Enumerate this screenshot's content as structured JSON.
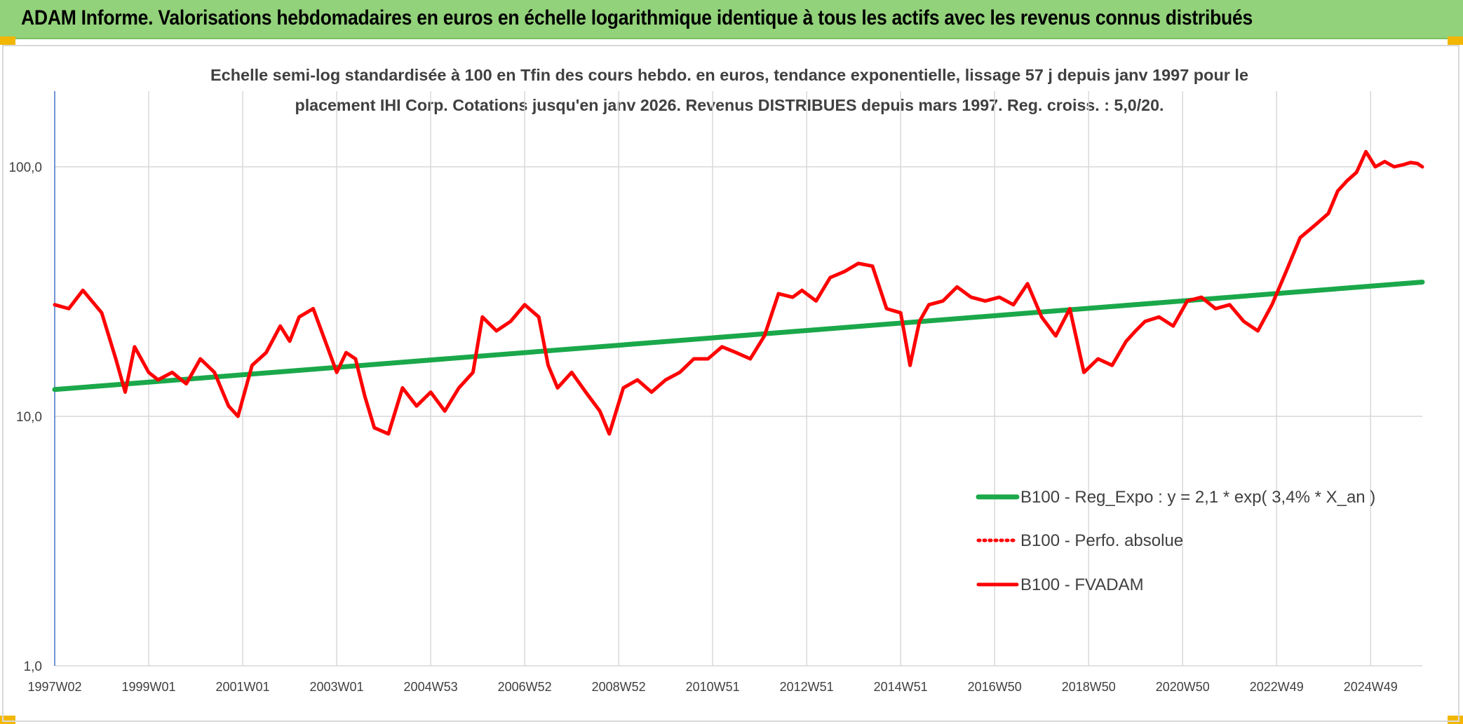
{
  "banner": {
    "title": "ADAM Informe. Valorisations hebdomadaires en euros en échelle logarithmique identique à tous les actifs avec les revenus connus distribués"
  },
  "colors": {
    "banner_bg": "#92d27a",
    "trend": "#1aa84a",
    "price": "#ff0000",
    "grid": "#d9d9d9",
    "axis": "#4472c4",
    "corner": "#f2b705"
  },
  "chart_data": {
    "type": "line",
    "title_lines": [
      "Echelle semi-log standardisée à 100 en Tfin des cours hebdo. en euros, tendance exponentielle, lissage 57 j depuis janv 1997 pour le",
      "placement IHI Corp. Cotations jusqu'en janv 2026. Revenus DISTRIBUES depuis mars 1997. Reg. croiss. : 5,0/20."
    ],
    "y_scale": "log",
    "ylim": [
      1,
      200
    ],
    "y_ticks": [
      1,
      10,
      100
    ],
    "y_tick_labels": [
      "1,0",
      "10,0",
      "100,0"
    ],
    "xlim": [
      1997.0,
      2026.1
    ],
    "x_tick_labels": [
      "1997W02",
      "1999W01",
      "2001W01",
      "2003W01",
      "2004W53",
      "2006W52",
      "2008W52",
      "2010W51",
      "2012W51",
      "2014W51",
      "2016W50",
      "2018W50",
      "2020W50",
      "2022W49",
      "2024W49"
    ],
    "x_tick_years": [
      1997.0,
      1999.0,
      2001.0,
      2003.0,
      2005.0,
      2007.0,
      2009.0,
      2011.0,
      2013.0,
      2015.0,
      2017.0,
      2019.0,
      2021.0,
      2023.0,
      2025.0
    ],
    "grid": true,
    "legend_position": "lower-right",
    "series": [
      {
        "name": "B100 - Reg_Expo : y = 2,1 * exp( 3,4% *  X_an )",
        "style": "solid",
        "color": "#1aa84a",
        "x": [
          1997.0,
          2026.1
        ],
        "y": [
          12.8,
          34.5
        ]
      },
      {
        "name": "B100 - Perfo. absolue",
        "style": "dotted",
        "color": "#ff0000",
        "x": [],
        "y": []
      },
      {
        "name": "B100 - FVADAM",
        "style": "solid",
        "color": "#ff0000",
        "x": [
          1997.0,
          1997.3,
          1997.6,
          1998.0,
          1998.3,
          1998.5,
          1998.7,
          1999.0,
          1999.2,
          1999.5,
          1999.8,
          2000.1,
          2000.4,
          2000.7,
          2000.9,
          2001.2,
          2001.5,
          2001.8,
          2002.0,
          2002.2,
          2002.5,
          2002.8,
          2003.0,
          2003.2,
          2003.4,
          2003.6,
          2003.8,
          2004.1,
          2004.4,
          2004.7,
          2005.0,
          2005.3,
          2005.6,
          2005.9,
          2006.1,
          2006.4,
          2006.7,
          2007.0,
          2007.3,
          2007.5,
          2007.7,
          2008.0,
          2008.3,
          2008.6,
          2008.8,
          2009.1,
          2009.4,
          2009.7,
          2010.0,
          2010.3,
          2010.6,
          2010.9,
          2011.2,
          2011.5,
          2011.8,
          2012.1,
          2012.4,
          2012.7,
          2012.9,
          2013.2,
          2013.5,
          2013.8,
          2014.1,
          2014.4,
          2014.7,
          2015.0,
          2015.2,
          2015.4,
          2015.6,
          2015.9,
          2016.2,
          2016.5,
          2016.8,
          2017.1,
          2017.4,
          2017.7,
          2018.0,
          2018.3,
          2018.6,
          2018.9,
          2019.2,
          2019.5,
          2019.8,
          2020.0,
          2020.2,
          2020.5,
          2020.8,
          2021.1,
          2021.4,
          2021.7,
          2022.0,
          2022.3,
          2022.6,
          2022.9,
          2023.2,
          2023.5,
          2023.8,
          2024.1,
          2024.3,
          2024.5,
          2024.7,
          2024.9,
          2025.1,
          2025.3,
          2025.5,
          2025.7,
          2025.85,
          2026.0,
          2026.1
        ],
        "y": [
          28,
          27,
          32,
          26,
          17,
          12.5,
          19,
          15,
          14,
          15,
          13.5,
          17,
          15,
          11,
          10,
          16,
          18,
          23,
          20,
          25,
          27,
          19,
          15,
          18,
          17,
          12,
          9,
          8.5,
          13,
          11,
          12.5,
          10.5,
          13,
          15,
          25,
          22,
          24,
          28,
          25,
          16,
          13,
          15,
          12.5,
          10.5,
          8.5,
          13,
          14,
          12.5,
          14,
          15,
          17,
          17,
          19,
          18,
          17,
          21,
          31,
          30,
          32,
          29,
          36,
          38,
          41,
          40,
          27,
          26,
          16,
          24,
          28,
          29,
          33,
          30,
          29,
          30,
          28,
          34,
          25,
          21,
          27,
          15,
          17,
          16,
          20,
          22,
          24,
          25,
          23,
          29,
          30,
          27,
          28,
          24,
          22,
          28,
          38,
          52,
          58,
          65,
          80,
          88,
          95,
          115,
          100,
          105,
          100,
          102,
          104,
          103,
          100
        ]
      }
    ]
  }
}
